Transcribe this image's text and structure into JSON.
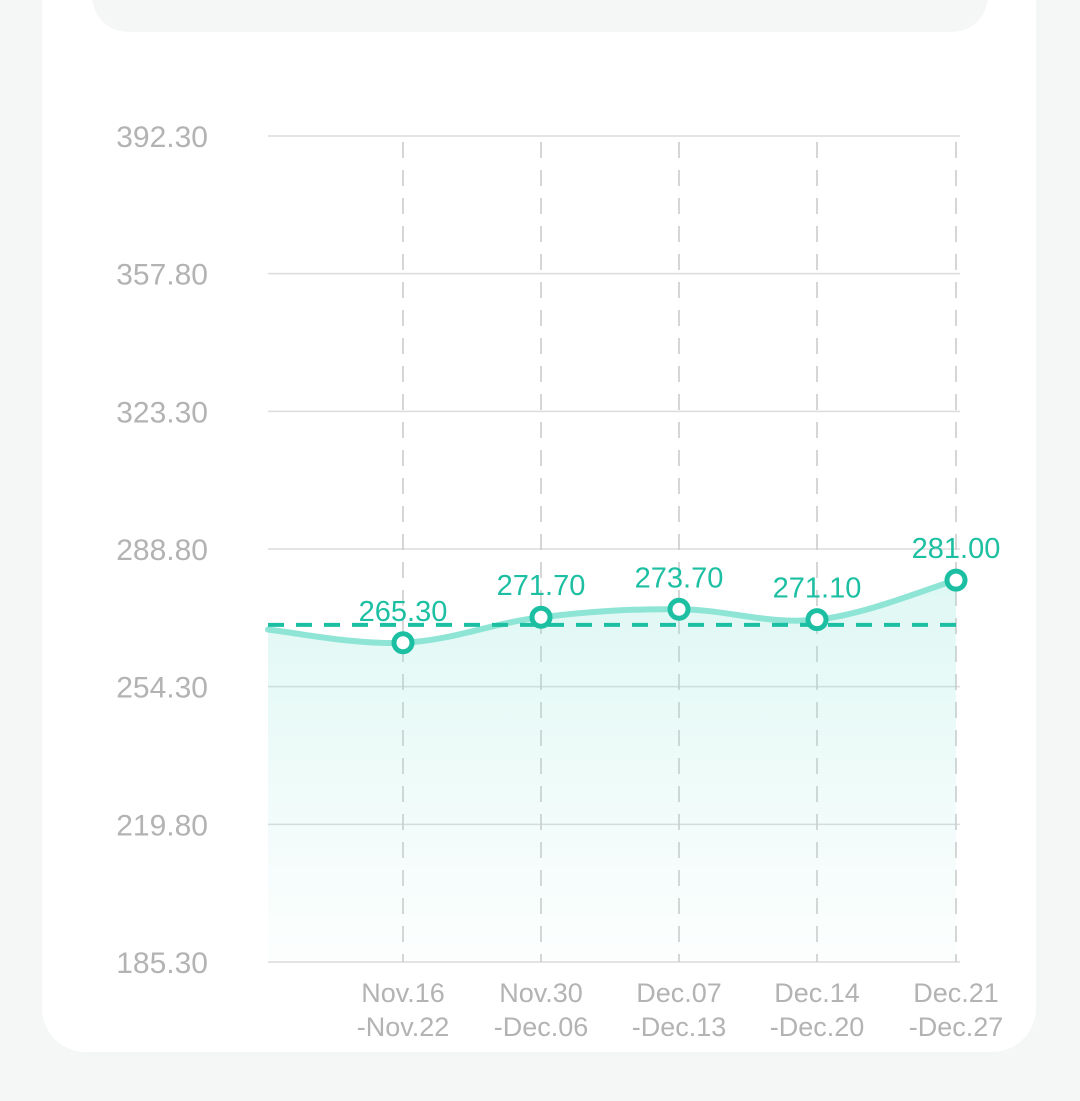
{
  "chart_data": {
    "type": "line",
    "y_ticks": [
      "392.30",
      "357.80",
      "323.30",
      "288.80",
      "254.30",
      "219.80",
      "185.30"
    ],
    "ylim": [
      185.3,
      392.3
    ],
    "categories": [
      [
        "Nov.16",
        "-Nov.22"
      ],
      [
        "Nov.30",
        "-Dec.06"
      ],
      [
        "Dec.07",
        "-Dec.13"
      ],
      [
        "Dec.14",
        "-Dec.20"
      ],
      [
        "Dec.21",
        "-Dec.27"
      ]
    ],
    "values": [
      265.3,
      271.7,
      273.7,
      271.1,
      281.0
    ],
    "value_labels": [
      "265.30",
      "271.70",
      "273.70",
      "271.10",
      "281.00"
    ],
    "leading_value": 268.6,
    "average_line": 269.8,
    "grid": true,
    "colors": {
      "line": "#8ee5d6",
      "marker": "#1dbfa3",
      "label": "#1dbfa3",
      "average": "#1dbfa3",
      "axis_text": "#b3b3b3",
      "grid": "#dcdcdc"
    }
  }
}
